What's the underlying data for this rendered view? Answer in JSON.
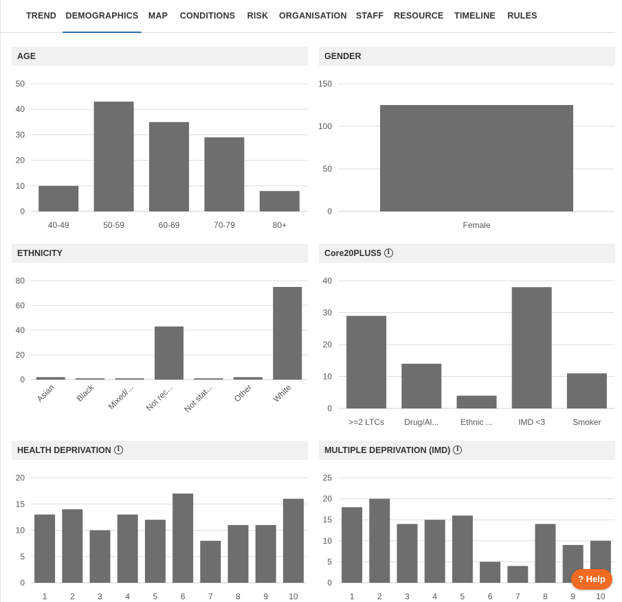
{
  "tabs": [
    {
      "label": "TREND"
    },
    {
      "label": "DEMOGRAPHICS",
      "active": true
    },
    {
      "label": "MAP"
    },
    {
      "label": "CONDITIONS"
    },
    {
      "label": "RISK"
    },
    {
      "label": "ORGANISATION"
    },
    {
      "label": "STAFF"
    },
    {
      "label": "RESOURCE"
    },
    {
      "label": "TIMELINE"
    },
    {
      "label": "RULES"
    }
  ],
  "colors": {
    "bar": "#6e6e6e",
    "grid": "#dddddd",
    "accent": "#2a6db0",
    "help": "#f26b22"
  },
  "help": {
    "label": "? Help"
  },
  "chart_data": [
    {
      "id": "age",
      "title": "AGE",
      "type": "bar",
      "info": false,
      "categories": [
        "40-49",
        "50-59",
        "60-69",
        "70-79",
        "80+"
      ],
      "values": [
        10,
        43,
        35,
        29,
        8
      ],
      "ylim": [
        0,
        50
      ],
      "yticks": [
        0,
        10,
        20,
        30,
        40,
        50
      ],
      "grid": true,
      "rotate_labels": false
    },
    {
      "id": "gender",
      "title": "GENDER",
      "type": "bar",
      "info": false,
      "categories": [
        "Female"
      ],
      "values": [
        125
      ],
      "ylim": [
        0,
        150
      ],
      "yticks": [
        0,
        50,
        100,
        150
      ],
      "grid": true,
      "rotate_labels": false
    },
    {
      "id": "ethnicity",
      "title": "ETHNICITY",
      "type": "bar",
      "info": false,
      "categories": [
        "Asian",
        "Black",
        "Mixed/...",
        "Not rec...",
        "Not stat...",
        "Other",
        "White"
      ],
      "values": [
        2,
        1,
        1,
        43,
        1,
        2,
        75
      ],
      "ylim": [
        0,
        80
      ],
      "yticks": [
        0,
        20,
        40,
        60,
        80
      ],
      "grid": true,
      "rotate_labels": true
    },
    {
      "id": "core20",
      "title": "Core20PLUS5",
      "type": "bar",
      "info": true,
      "categories": [
        ">=2 LTCs",
        "Drug/Al...",
        "Ethnic ...",
        "IMD <3",
        "Smoker"
      ],
      "values": [
        29,
        14,
        4,
        38,
        11
      ],
      "ylim": [
        0,
        40
      ],
      "yticks": [
        0,
        10,
        20,
        30,
        40
      ],
      "grid": true,
      "rotate_labels": false
    },
    {
      "id": "health",
      "title": "HEALTH DEPRIVATION",
      "type": "bar",
      "info": true,
      "categories": [
        "1",
        "2",
        "3",
        "4",
        "5",
        "6",
        "7",
        "8",
        "9",
        "10"
      ],
      "values": [
        13,
        14,
        10,
        13,
        12,
        17,
        8,
        11,
        11,
        16
      ],
      "ylim": [
        0,
        20
      ],
      "yticks": [
        0,
        5,
        10,
        15,
        20
      ],
      "grid": true,
      "rotate_labels": false
    },
    {
      "id": "imd",
      "title": "MULTIPLE DEPRIVATION (IMD)",
      "type": "bar",
      "info": true,
      "categories": [
        "1",
        "2",
        "3",
        "4",
        "5",
        "6",
        "7",
        "8",
        "9",
        "10"
      ],
      "values": [
        18,
        20,
        14,
        15,
        16,
        5,
        4,
        14,
        9,
        10
      ],
      "ylim": [
        0,
        25
      ],
      "yticks": [
        0,
        5,
        10,
        15,
        20,
        25
      ],
      "grid": true,
      "rotate_labels": false
    }
  ]
}
